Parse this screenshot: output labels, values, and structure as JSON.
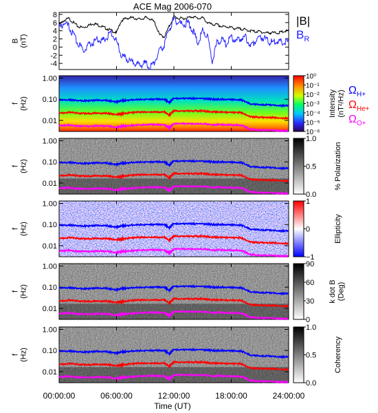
{
  "title": "ACE Mag 2006-070",
  "x_axis": {
    "label": "Time (UT)",
    "range_hours": [
      0,
      24
    ],
    "ticks": [
      {
        "value": 0,
        "label": "00:00:00"
      },
      {
        "value": 6,
        "label": "06:00:00"
      },
      {
        "value": 12,
        "label": "12:00:00"
      },
      {
        "value": 18,
        "label": "18:00:00"
      },
      {
        "value": 24,
        "label": "24:00:00"
      }
    ]
  },
  "colors": {
    "B_mag": "#000000",
    "B_R": "#2020ff",
    "H_plus": "#0000ff",
    "He_plus": "#ff0000",
    "O_plus": "#ff00ff"
  },
  "panels": [
    {
      "id": "b",
      "ylabel": [
        "B",
        "(nT)"
      ],
      "yticks": [
        "8",
        "6",
        "4",
        "2",
        "0",
        "-2",
        "-4"
      ]
    },
    {
      "id": "intensity",
      "ylabel": [
        "f",
        "(Hz)"
      ],
      "yticks": [
        "1.00",
        "0.10",
        "0.01"
      ],
      "cbar_title": [
        "Intensity",
        "(nT²/Hz)"
      ],
      "cbar_ticks": [
        "10⁰",
        "10⁻¹",
        "10⁻²",
        "10⁻³",
        "10⁻⁴",
        "10⁻⁵",
        "10⁻⁶"
      ]
    },
    {
      "id": "polarization",
      "ylabel": [
        "f",
        "(Hz)"
      ],
      "yticks": [
        "1.00",
        "0.10",
        "0.01"
      ],
      "cbar_title": [
        "% Polarization"
      ],
      "cbar_ticks": [
        "1.0",
        "0.5",
        "0.0"
      ]
    },
    {
      "id": "ellipticity",
      "ylabel": [
        "f",
        "(Hz)"
      ],
      "yticks": [
        "1.00",
        "0.10",
        "0.01"
      ],
      "cbar_title": [
        "Ellipticity"
      ],
      "cbar_ticks": [
        "1",
        "0",
        "−1"
      ]
    },
    {
      "id": "kdotb",
      "ylabel": [
        "f",
        "(Hz)"
      ],
      "yticks": [
        "1.00",
        "0.10",
        "0.01"
      ],
      "cbar_title": [
        "k dot B",
        "(Deg)"
      ],
      "cbar_ticks": [
        "90",
        "60",
        "30",
        "0"
      ]
    },
    {
      "id": "coherency",
      "ylabel": [
        "f",
        "(Hz)"
      ],
      "yticks": [
        "1.00",
        "0.10",
        "0.01"
      ],
      "cbar_title": [
        "Coherency"
      ],
      "cbar_ticks": [
        "1.0",
        "0.5",
        "0.0"
      ]
    }
  ],
  "legend_b": [
    "|B|",
    "B",
    "R"
  ],
  "legend_cyclotron": [
    {
      "label": "Ω",
      "sub": "H+",
      "color": "#0000ff"
    },
    {
      "label": "Ω",
      "sub": "He+",
      "color": "#ff0000"
    },
    {
      "label": "Ω",
      "sub": "O+",
      "color": "#ff00ff"
    }
  ],
  "chart_data": [
    {
      "type": "line",
      "title": "ACE Mag 2006-070",
      "ylabel": "B (nT)",
      "ylim": [
        -5.5,
        8.5
      ],
      "x_hours": [
        0,
        0.5,
        1,
        1.5,
        2,
        2.5,
        3,
        3.5,
        4,
        4.5,
        5,
        5.5,
        6,
        6.5,
        7,
        7.5,
        8,
        8.5,
        9,
        9.5,
        10,
        10.5,
        11,
        11.5,
        12,
        12.5,
        13,
        13.5,
        14,
        14.5,
        15,
        15.5,
        16,
        16.5,
        17,
        17.5,
        18,
        18.5,
        19,
        19.5,
        20,
        20.5,
        21,
        21.5,
        22,
        22.5,
        23,
        23.5,
        24
      ],
      "series": [
        {
          "name": "|B|",
          "values": [
            5.5,
            6.5,
            7.0,
            6.0,
            5.0,
            4.8,
            5.2,
            5.8,
            5.5,
            5.0,
            4.5,
            4.0,
            3.5,
            6.5,
            7.0,
            7.2,
            7.0,
            6.8,
            7.2,
            7.0,
            6.0,
            3.0,
            2.5,
            5.0,
            7.5,
            7.0,
            7.0,
            7.2,
            7.5,
            7.0,
            7.2,
            6.0,
            5.5,
            5.5,
            5.0,
            5.0,
            4.8,
            4.5,
            4.5,
            4.2,
            4.0,
            3.8,
            3.8,
            3.5,
            3.5,
            3.5,
            3.5,
            3.8,
            4.0
          ]
        },
        {
          "name": "B",
          "values": [
            4.5,
            6.0,
            5.0,
            3.0,
            1.0,
            -1.0,
            0.5,
            1.0,
            2.0,
            1.5,
            2.5,
            3.5,
            1.5,
            -2.0,
            -3.0,
            -3.5,
            -4.0,
            -4.5,
            -4.0,
            -5.0,
            -3.5,
            -1.0,
            0.5,
            4.5,
            6.5,
            6.0,
            5.5,
            6.0,
            4.0,
            1.0,
            4.0,
            3.0,
            -3.5,
            1.0,
            2.0,
            0.5,
            2.5,
            1.5,
            2.0,
            2.5,
            0.0,
            1.5,
            2.5,
            2.0,
            1.0,
            1.5,
            1.5,
            1.0,
            1.5
          ]
        }
      ]
    },
    {
      "type": "line",
      "title": "",
      "ylabel": "f (Hz)",
      "yscale": "log",
      "ylim": [
        0.003,
        1.3
      ],
      "x_hours": [
        0,
        1,
        2,
        3,
        4,
        5,
        6,
        6.5,
        7,
        8,
        9,
        10,
        11,
        11.5,
        12,
        13,
        14,
        15,
        16,
        17,
        18,
        19,
        20,
        21,
        22,
        23,
        24
      ],
      "series": [
        {
          "name": "ΩH+",
          "values": [
            0.09,
            0.095,
            0.088,
            0.085,
            0.09,
            0.088,
            0.075,
            0.085,
            0.09,
            0.095,
            0.1,
            0.1,
            0.1,
            0.07,
            0.11,
            0.11,
            0.11,
            0.11,
            0.1,
            0.1,
            0.095,
            0.095,
            0.06,
            0.055,
            0.055,
            0.05,
            0.05
          ]
        },
        {
          "name": "ΩHe+",
          "values": [
            0.022,
            0.024,
            0.022,
            0.021,
            0.022,
            0.022,
            0.019,
            0.021,
            0.022,
            0.024,
            0.025,
            0.025,
            0.025,
            0.018,
            0.028,
            0.028,
            0.028,
            0.028,
            0.025,
            0.025,
            0.024,
            0.024,
            0.015,
            0.014,
            0.014,
            0.013,
            0.013
          ]
        },
        {
          "name": "ΩO+",
          "values": [
            0.0055,
            0.006,
            0.0055,
            0.0053,
            0.0055,
            0.0055,
            0.0047,
            0.0053,
            0.0055,
            0.006,
            0.0063,
            0.0063,
            0.0063,
            0.0045,
            0.007,
            0.007,
            0.007,
            0.007,
            0.0063,
            0.0063,
            0.006,
            0.006,
            0.0038,
            0.0035,
            0.0035,
            0.0032,
            0.0032
          ]
        }
      ]
    }
  ]
}
